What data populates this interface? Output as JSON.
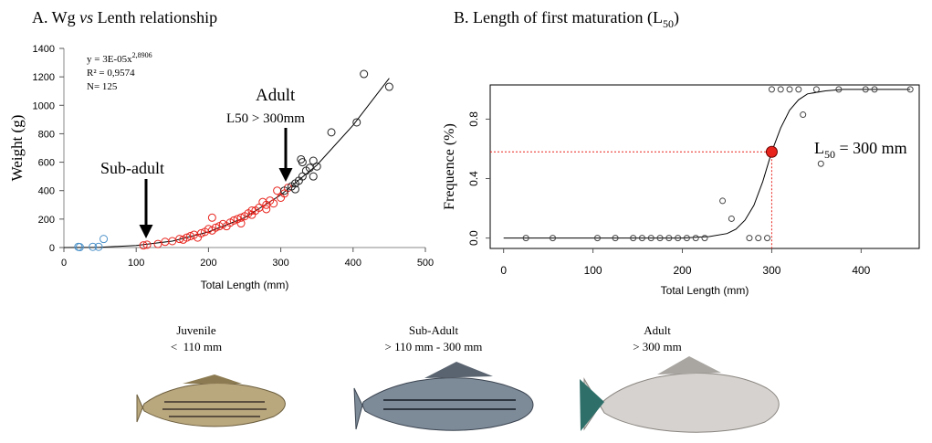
{
  "chart_data": [
    {
      "type": "scatter",
      "title": "A. Wg ",
      "title_italic": "vs",
      "title_end": " Lenth relationship",
      "x_label": "Total Length (mm)",
      "y_label": "Weight (g)",
      "xlim": [
        0,
        500
      ],
      "xticks": [
        0,
        100,
        200,
        300,
        400,
        500
      ],
      "ylim": [
        0,
        1400
      ],
      "yticks": [
        0,
        200,
        400,
        600,
        800,
        1000,
        1200,
        1400
      ],
      "equation": "y = 3E-05x",
      "equation_exp": "2,8906",
      "r2": "R² = 0,9574",
      "n": "N= 125",
      "annotations": [
        "Sub-adult",
        "Adult",
        "L50 > 300mm"
      ],
      "series": [
        {
          "color": "#4a90c8",
          "x": [
            20,
            22,
            40,
            48,
            55
          ],
          "values": [
            5,
            3,
            5,
            5,
            60
          ]
        },
        {
          "color": "#e8231c",
          "x": [
            110,
            115,
            130,
            140,
            150,
            160,
            165,
            170,
            175,
            180,
            185,
            190,
            195,
            200,
            205,
            205,
            210,
            215,
            220,
            225,
            230,
            235,
            240,
            245,
            250,
            255,
            260,
            265,
            270,
            275,
            280,
            285,
            290,
            295,
            300,
            305,
            310,
            245,
            260,
            280
          ],
          "values": [
            15,
            20,
            25,
            40,
            45,
            60,
            55,
            70,
            80,
            90,
            70,
            100,
            110,
            130,
            120,
            210,
            140,
            150,
            165,
            150,
            175,
            190,
            200,
            210,
            220,
            240,
            230,
            260,
            280,
            320,
            300,
            330,
            310,
            400,
            350,
            380,
            420,
            170,
            260,
            270
          ]
        },
        {
          "color": "#222222",
          "x": [
            305,
            315,
            320,
            325,
            328,
            330,
            335,
            340,
            345,
            350,
            345,
            370,
            405,
            415,
            450,
            330,
            320
          ],
          "values": [
            400,
            430,
            450,
            470,
            620,
            600,
            540,
            560,
            610,
            570,
            500,
            810,
            880,
            1220,
            1130,
            500,
            410
          ]
        }
      ],
      "fit": {
        "x": [
          0,
          50,
          100,
          150,
          200,
          250,
          300,
          350,
          400,
          450
        ],
        "values": [
          0,
          2,
          15,
          45,
          110,
          210,
          370,
          580,
          860,
          1190
        ]
      }
    },
    {
      "type": "scatter",
      "title": "B. Length of first maturation (L",
      "title_sub": "50",
      "title_end": ")",
      "x_label": "Total Length (mm)",
      "y_label": "Frequence (%)",
      "xlim": [
        -15,
        465
      ],
      "xticks": [
        0,
        100,
        200,
        300,
        400
      ],
      "ylim": [
        -0.07,
        1.03
      ],
      "yticks": [
        {
          "value": 0,
          "label": "0.0"
        },
        {
          "value": 0.4,
          "label": "0.4"
        },
        {
          "value": 0.8,
          "label": "0.8"
        }
      ],
      "series": [
        {
          "color": "#444444",
          "x": [
            25,
            55,
            105,
            125,
            145,
            155,
            165,
            175,
            185,
            195,
            205,
            215,
            225,
            245,
            255,
            275,
            285,
            295,
            300,
            310,
            320,
            330,
            335,
            350,
            355,
            375,
            405,
            415,
            455
          ],
          "values": [
            0,
            0,
            0,
            0,
            0,
            0,
            0,
            0,
            0,
            0,
            0,
            0,
            0,
            0.25,
            0.13,
            0,
            0,
            0,
            1,
            1,
            1,
            1,
            0.83,
            1,
            0.5,
            1,
            1,
            1,
            1
          ]
        }
      ],
      "fit": {
        "x": [
          0,
          200,
          230,
          250,
          260,
          270,
          280,
          290,
          300,
          310,
          320,
          330,
          340,
          360,
          380,
          455
        ],
        "values": [
          0,
          0,
          0.01,
          0.03,
          0.06,
          0.12,
          0.22,
          0.38,
          0.58,
          0.74,
          0.86,
          0.93,
          0.97,
          0.99,
          1,
          1
        ]
      },
      "l50_point": {
        "x": 300,
        "y": 0.58,
        "color": "#e8231c"
      },
      "l50_label": "L",
      "l50_sub": "50",
      "l50_rest": " = 300 mm"
    }
  ],
  "fish_panels": [
    {
      "name": "Juvenile",
      "range": "<  110 mm"
    },
    {
      "name": "Sub-Adult",
      "range": "> 110 mm - 300 mm"
    },
    {
      "name": "Adult",
      "range": "> 300 mm"
    }
  ]
}
